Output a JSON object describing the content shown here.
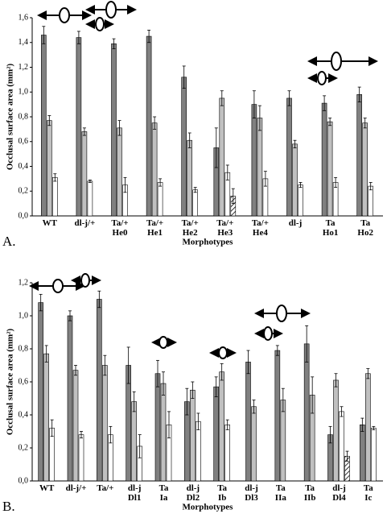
{
  "chart_data": [
    {
      "type": "bar",
      "panel": "A.",
      "y_label": "Occlusal surface area (mm²)",
      "x_label": "Morphotypes",
      "categories": [
        "WT",
        "dl-j/+",
        "Ta/+\nHe0",
        "Ta/+\nHe1",
        "Ta/+\nHe2",
        "Ta/+\nHe3",
        "Ta/+\nHe4",
        "dl-j",
        "Ta\nHo1",
        "Ta\nHo2"
      ],
      "series": [
        {
          "color": "#808080",
          "values": [
            1.46,
            1.44,
            1.39,
            1.45,
            1.12,
            0.55,
            0.9,
            0.95,
            0.91,
            0.98
          ],
          "errors": [
            0.07,
            0.05,
            0.04,
            0.05,
            0.09,
            0.16,
            0.11,
            0.06,
            0.06,
            0.06
          ]
        },
        {
          "color": "#c0c0c0",
          "values": [
            0.77,
            0.68,
            0.71,
            0.75,
            0.61,
            0.95,
            0.79,
            0.58,
            0.76,
            0.75
          ],
          "errors": [
            0.04,
            0.03,
            0.06,
            0.05,
            0.06,
            0.06,
            0.1,
            0.03,
            0.03,
            0.04
          ]
        },
        {
          "color": "#ffffff",
          "values": [
            0.31,
            0.28,
            0.25,
            0.27,
            0.21,
            0.35,
            0.3,
            0.25,
            0.27,
            0.24
          ],
          "errors": [
            0.03,
            0.01,
            0.06,
            0.03,
            0.02,
            0.06,
            0.06,
            0.02,
            0.04,
            0.03
          ]
        },
        {
          "color": "#ffffff",
          "hatch": true,
          "values": [
            null,
            null,
            null,
            null,
            null,
            0.16,
            null,
            null,
            null,
            null
          ],
          "errors": [
            null,
            null,
            null,
            null,
            null,
            0.06,
            null,
            null,
            null,
            null
          ]
        }
      ],
      "ylim": [
        0,
        1.6
      ],
      "yticks": [
        {
          "value": 0,
          "label": "0,0"
        },
        {
          "value": 0.2,
          "label": "0,2"
        },
        {
          "value": 0.4,
          "label": "0,4"
        },
        {
          "value": 0.6,
          "label": "0,6"
        },
        {
          "value": 0.8,
          "label": "0,8"
        },
        {
          "value": 1,
          "label": "1,0"
        },
        {
          "value": 1.2,
          "label": "1,2"
        },
        {
          "value": 1.4,
          "label": "1,4"
        },
        {
          "value": 1.6,
          "label": "1,6"
        }
      ]
    },
    {
      "type": "bar",
      "panel": "B.",
      "y_label": "Occlusal surface area (mm²)",
      "x_label": "Morphotypes",
      "categories": [
        "WT",
        "dl-j/+",
        "Ta/+",
        "dl-j\nDl1",
        "Ta\nIa",
        "dl-j\nDl2",
        "Ta\nIb",
        "dl-j\nDl3",
        "Ta\nIIa",
        "Ta\nIIb",
        "dl-j\nDl4",
        "Ta\nIc"
      ],
      "series": [
        {
          "color": "#808080",
          "values": [
            1.08,
            1.0,
            1.1,
            0.7,
            0.65,
            0.48,
            0.57,
            0.72,
            0.79,
            0.83,
            0.28,
            0.34
          ],
          "errors": [
            0.05,
            0.03,
            0.05,
            0.11,
            0.08,
            0.08,
            0.06,
            0.07,
            0.03,
            0.11,
            0.05,
            0.04
          ]
        },
        {
          "color": "#c0c0c0",
          "values": [
            0.77,
            0.67,
            0.7,
            0.48,
            0.59,
            0.55,
            0.66,
            0.45,
            0.49,
            0.52,
            0.61,
            0.65
          ],
          "errors": [
            0.05,
            0.03,
            0.06,
            0.06,
            0.07,
            0.05,
            0.05,
            0.04,
            0.07,
            0.11,
            0.04,
            0.03
          ]
        },
        {
          "color": "#ffffff",
          "values": [
            0.32,
            0.28,
            0.28,
            0.21,
            0.34,
            0.36,
            0.34,
            null,
            null,
            null,
            0.42,
            0.32
          ],
          "errors": [
            0.05,
            0.02,
            0.05,
            0.07,
            0.08,
            0.05,
            0.03,
            null,
            null,
            null,
            0.03,
            0.01
          ]
        },
        {
          "color": "#ffffff",
          "hatch": true,
          "values": [
            null,
            null,
            null,
            null,
            null,
            null,
            null,
            null,
            null,
            null,
            0.15,
            null
          ],
          "errors": [
            null,
            null,
            null,
            null,
            null,
            null,
            null,
            null,
            null,
            null,
            0.03,
            null
          ]
        }
      ],
      "ylim": [
        0,
        1.2
      ],
      "yticks": [
        {
          "value": 0,
          "label": "0,0"
        },
        {
          "value": 0.2,
          "label": "0,2"
        },
        {
          "value": 0.4,
          "label": "0,4"
        },
        {
          "value": 0.6,
          "label": "0,6"
        },
        {
          "value": 0.8,
          "label": "0,8"
        },
        {
          "value": 1,
          "label": "1,0"
        },
        {
          "value": 1.2,
          "label": "1,2"
        }
      ]
    }
  ]
}
